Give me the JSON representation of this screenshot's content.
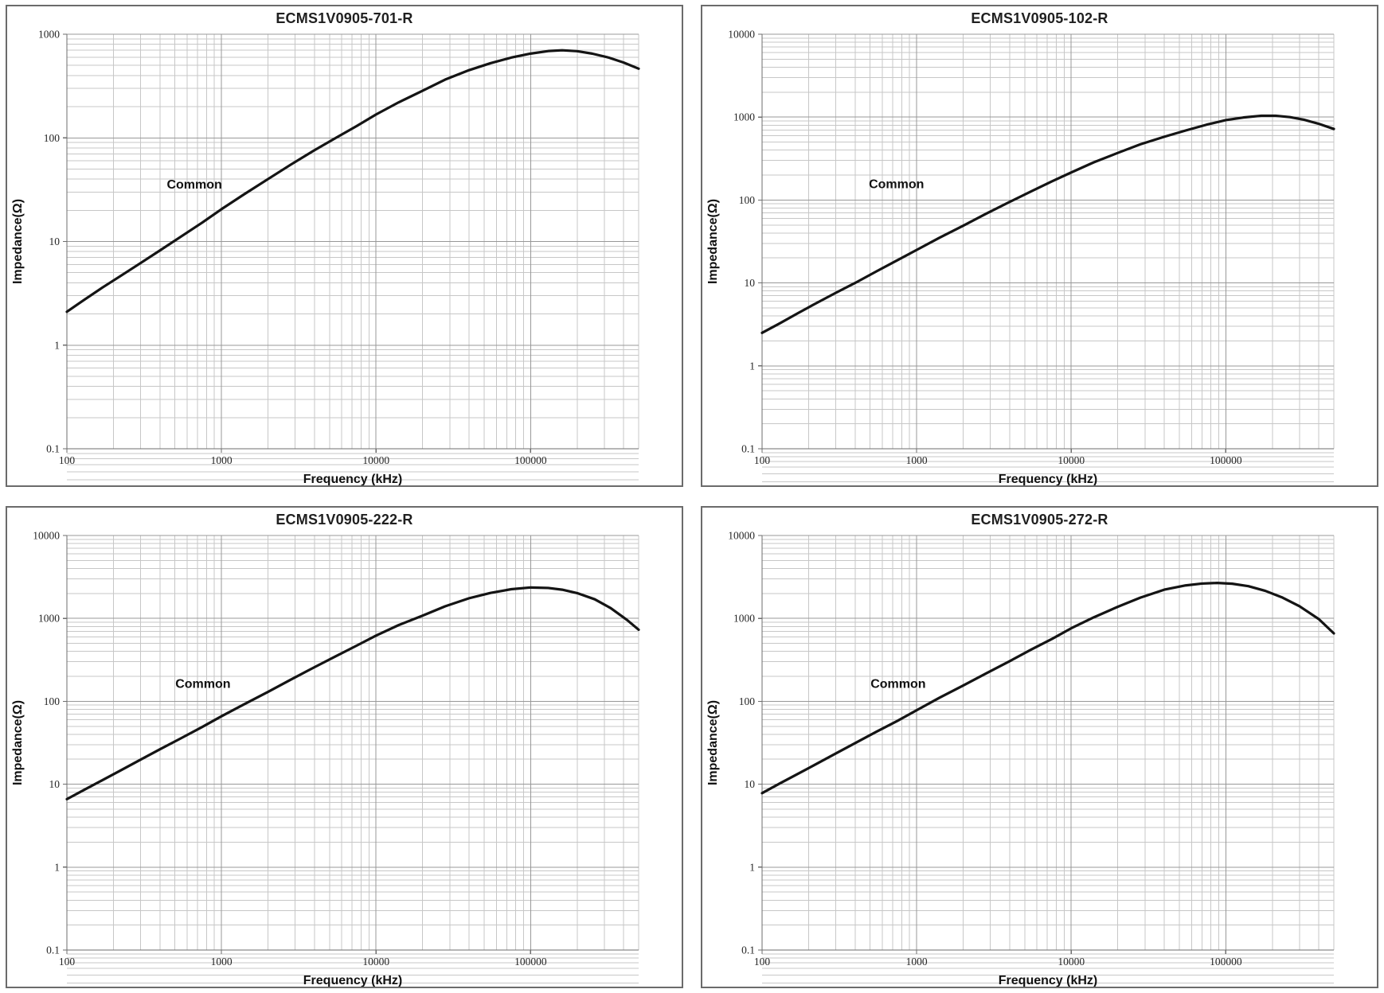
{
  "page": {
    "background": "#ffffff"
  },
  "charts_common": {
    "x_label": "Frequency (kHz)",
    "y_label": "Impedance(Ω)",
    "curve_color": "#141414",
    "minor_grid_color": "#c7c7c7",
    "major_grid_color": "#989898",
    "axis_color": "#6e6e6e"
  },
  "chart_data": [
    {
      "type": "line",
      "title": "ECMS1V0905-701-R",
      "xlabel": "Frequency (kHz)",
      "ylabel": "Impedance(Ω)",
      "log_x": true,
      "log_y": true,
      "grid": "log major+minor",
      "x_range": [
        100,
        500000
      ],
      "y_range": [
        0.1,
        1000
      ],
      "x_tick_labels": [
        "100",
        "1000",
        "10000",
        "100000"
      ],
      "x_tick_values": [
        100,
        1000,
        10000,
        100000
      ],
      "y_tick_labels": [
        "1000",
        "100",
        "10",
        "1",
        "0.1"
      ],
      "y_tick_values": [
        1000,
        100,
        10,
        1,
        0.1
      ],
      "annotation": "Common",
      "annotation_pos": {
        "fx": 0.223,
        "fy": 0.372
      },
      "series": [
        {
          "name": "Common",
          "points": [
            [
              100,
              2.1
            ],
            [
              130,
              2.75
            ],
            [
              170,
              3.6
            ],
            [
              220,
              4.6
            ],
            [
              300,
              6.2
            ],
            [
              400,
              8.2
            ],
            [
              550,
              11.2
            ],
            [
              750,
              15.2
            ],
            [
              1000,
              20.5
            ],
            [
              1400,
              28.5
            ],
            [
              2000,
              40
            ],
            [
              2800,
              55
            ],
            [
              4000,
              76
            ],
            [
              5500,
              100
            ],
            [
              7500,
              130
            ],
            [
              10000,
              168
            ],
            [
              14000,
              220
            ],
            [
              20000,
              285
            ],
            [
              28000,
              365
            ],
            [
              40000,
              450
            ],
            [
              55000,
              525
            ],
            [
              75000,
              595
            ],
            [
              100000,
              650
            ],
            [
              130000,
              688
            ],
            [
              160000,
              700
            ],
            [
              200000,
              686
            ],
            [
              250000,
              650
            ],
            [
              320000,
              595
            ],
            [
              400000,
              533
            ],
            [
              500000,
              465
            ]
          ]
        }
      ]
    },
    {
      "type": "line",
      "title": "ECMS1V0905-102-R",
      "xlabel": "Frequency (kHz)",
      "ylabel": "Impedance(Ω)",
      "log_x": true,
      "log_y": true,
      "grid": "log major+minor",
      "x_range": [
        100,
        500000
      ],
      "y_range": [
        0.1,
        10000
      ],
      "x_tick_labels": [
        "100",
        "1000",
        "10000",
        "100000"
      ],
      "x_tick_values": [
        100,
        1000,
        10000,
        100000
      ],
      "y_tick_labels": [
        "10000",
        "1000",
        "100",
        "10",
        "1",
        "0.1"
      ],
      "y_tick_values": [
        10000,
        1000,
        100,
        10,
        1,
        0.1
      ],
      "annotation": "Common",
      "annotation_pos": {
        "fx": 0.235,
        "fy": 0.371
      },
      "series": [
        {
          "name": "Common",
          "points": [
            [
              100,
              2.5
            ],
            [
              130,
              3.25
            ],
            [
              170,
              4.3
            ],
            [
              220,
              5.6
            ],
            [
              300,
              7.6
            ],
            [
              400,
              10
            ],
            [
              550,
              13.8
            ],
            [
              750,
              18.8
            ],
            [
              1000,
              25
            ],
            [
              1400,
              35
            ],
            [
              2000,
              49
            ],
            [
              2800,
              68
            ],
            [
              4000,
              95
            ],
            [
              5500,
              127
            ],
            [
              7500,
              168
            ],
            [
              10000,
              215
            ],
            [
              14000,
              285
            ],
            [
              20000,
              370
            ],
            [
              28000,
              470
            ],
            [
              40000,
              580
            ],
            [
              55000,
              690
            ],
            [
              75000,
              810
            ],
            [
              100000,
              920
            ],
            [
              130000,
              990
            ],
            [
              170000,
              1040
            ],
            [
              210000,
              1040
            ],
            [
              260000,
              1000
            ],
            [
              320000,
              930
            ],
            [
              400000,
              830
            ],
            [
              500000,
              720
            ]
          ]
        }
      ]
    },
    {
      "type": "line",
      "title": "ECMS1V0905-222-R",
      "xlabel": "Frequency (kHz)",
      "ylabel": "Impedance(Ω)",
      "log_x": true,
      "log_y": true,
      "grid": "log major+minor",
      "x_range": [
        100,
        500000
      ],
      "y_range": [
        0.1,
        10000
      ],
      "x_tick_labels": [
        "100",
        "1000",
        "10000",
        "100000"
      ],
      "x_tick_values": [
        100,
        1000,
        10000,
        100000
      ],
      "y_tick_labels": [
        "10000",
        "1000",
        "100",
        "10",
        "1",
        "0.1"
      ],
      "y_tick_values": [
        10000,
        1000,
        100,
        10,
        1,
        0.1
      ],
      "annotation": "Common",
      "annotation_pos": {
        "fx": 0.238,
        "fy": 0.368
      },
      "series": [
        {
          "name": "Common",
          "points": [
            [
              100,
              6.6
            ],
            [
              130,
              8.6
            ],
            [
              170,
              11.2
            ],
            [
              220,
              14.5
            ],
            [
              300,
              19.8
            ],
            [
              400,
              26.4
            ],
            [
              550,
              36
            ],
            [
              750,
              49
            ],
            [
              1000,
              66
            ],
            [
              1400,
              92
            ],
            [
              2000,
              130
            ],
            [
              2800,
              182
            ],
            [
              4000,
              258
            ],
            [
              5500,
              350
            ],
            [
              7500,
              470
            ],
            [
              10000,
              620
            ],
            [
              14000,
              830
            ],
            [
              20000,
              1080
            ],
            [
              28000,
              1400
            ],
            [
              40000,
              1750
            ],
            [
              55000,
              2030
            ],
            [
              75000,
              2250
            ],
            [
              100000,
              2360
            ],
            [
              130000,
              2330
            ],
            [
              160000,
              2220
            ],
            [
              200000,
              2020
            ],
            [
              260000,
              1700
            ],
            [
              330000,
              1330
            ],
            [
              420000,
              960
            ],
            [
              500000,
              730
            ]
          ]
        }
      ]
    },
    {
      "type": "line",
      "title": "ECMS1V0905-272-R",
      "xlabel": "Frequency (kHz)",
      "ylabel": "Impedance(Ω)",
      "log_x": true,
      "log_y": true,
      "grid": "log major+minor",
      "x_range": [
        100,
        500000
      ],
      "y_range": [
        0.1,
        10000
      ],
      "x_tick_labels": [
        "100",
        "1000",
        "10000",
        "100000"
      ],
      "x_tick_values": [
        100,
        1000,
        10000,
        100000
      ],
      "y_tick_labels": [
        "10000",
        "1000",
        "100",
        "10",
        "1",
        "0.1"
      ],
      "y_tick_values": [
        10000,
        1000,
        100,
        10,
        1,
        0.1
      ],
      "annotation": "Common",
      "annotation_pos": {
        "fx": 0.238,
        "fy": 0.368
      },
      "series": [
        {
          "name": "Common",
          "points": [
            [
              100,
              7.8
            ],
            [
              130,
              10.2
            ],
            [
              170,
              13.3
            ],
            [
              220,
              17.2
            ],
            [
              300,
              23.5
            ],
            [
              400,
              31.3
            ],
            [
              550,
              43
            ],
            [
              750,
              58
            ],
            [
              1000,
              78
            ],
            [
              1400,
              110
            ],
            [
              2000,
              155
            ],
            [
              2800,
              216
            ],
            [
              4000,
              305
            ],
            [
              5500,
              420
            ],
            [
              7500,
              565
            ],
            [
              10000,
              760
            ],
            [
              14000,
              1030
            ],
            [
              20000,
              1380
            ],
            [
              28000,
              1780
            ],
            [
              40000,
              2220
            ],
            [
              55000,
              2500
            ],
            [
              70000,
              2630
            ],
            [
              88000,
              2680
            ],
            [
              110000,
              2620
            ],
            [
              140000,
              2450
            ],
            [
              180000,
              2150
            ],
            [
              230000,
              1800
            ],
            [
              300000,
              1400
            ],
            [
              400000,
              980
            ],
            [
              500000,
              660
            ]
          ]
        }
      ]
    }
  ]
}
